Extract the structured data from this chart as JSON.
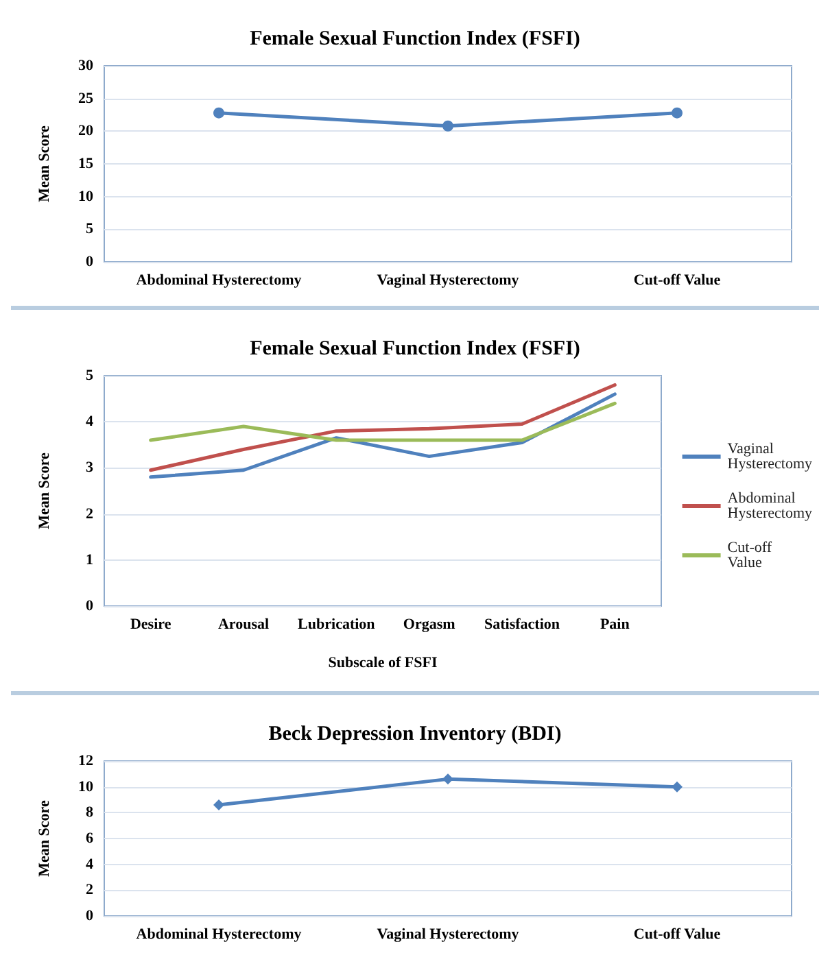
{
  "chart_data": [
    {
      "type": "line",
      "title": "Female Sexual Function Index (FSFI)",
      "ylabel": "Mean Score",
      "categories": [
        "Abdominal Hysterectomy",
        "Vaginal Hysterectomy",
        "Cut-off Value"
      ],
      "series": [
        {
          "color": "#4f81bd",
          "values": [
            22.8,
            20.8,
            22.8
          ]
        }
      ],
      "ylim": [
        0,
        30
      ],
      "yticks": [
        0,
        5,
        10,
        15,
        20,
        25,
        30
      ],
      "grid": "y",
      "legend": false,
      "marker": "circle"
    },
    {
      "type": "line",
      "title": "Female Sexual Function Index (FSFI)",
      "xlabel": "Subscale of FSFI",
      "ylabel": "Mean Score",
      "categories": [
        "Desire",
        "Arousal",
        "Lubrication",
        "Orgasm",
        "Satisfaction",
        "Pain"
      ],
      "series": [
        {
          "name": "Vaginal Hysterectomy",
          "color": "#4f81bd",
          "values": [
            2.8,
            2.95,
            3.65,
            3.25,
            3.55,
            4.6
          ]
        },
        {
          "name": "Abdominal Hysterectomy",
          "color": "#c0504d",
          "values": [
            2.95,
            3.4,
            3.8,
            3.85,
            3.95,
            4.8
          ]
        },
        {
          "name": "Cut-off Value",
          "color": "#9bbb59",
          "values": [
            3.6,
            3.9,
            3.6,
            3.6,
            3.6,
            4.4
          ]
        }
      ],
      "ylim": [
        0,
        5
      ],
      "yticks": [
        0,
        1,
        2,
        3,
        4,
        5
      ],
      "grid": "y",
      "legend": "right",
      "marker": "none"
    },
    {
      "type": "line",
      "title": "Beck Depression Inventory (BDI)",
      "ylabel": "Mean Score",
      "categories": [
        "Abdominal Hysterectomy",
        "Vaginal Hysterectomy",
        "Cut-off Value"
      ],
      "series": [
        {
          "color": "#4f81bd",
          "values": [
            8.6,
            10.6,
            10.0
          ]
        }
      ],
      "ylim": [
        0,
        12
      ],
      "yticks": [
        0,
        2,
        4,
        6,
        8,
        10,
        12
      ],
      "grid": "y",
      "legend": false,
      "marker": "diamond"
    }
  ]
}
